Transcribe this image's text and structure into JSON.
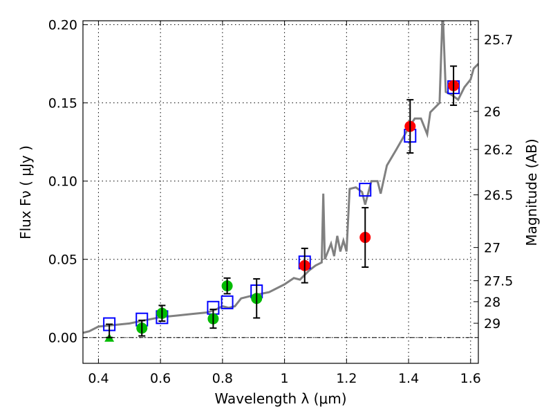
{
  "chart_data": {
    "type": "scatter",
    "xlabel": "Wavelength  λ (μm)",
    "ylabel": "Flux  Fν  ( μJy )",
    "ylabel_right": "Magnitude (AB)",
    "xlim": [
      0.35,
      1.625
    ],
    "ylim": [
      -0.0165,
      0.2025
    ],
    "grid": true,
    "x_ticks": [
      0.4,
      0.6,
      0.8,
      1.0,
      1.2,
      1.4,
      1.6
    ],
    "x_tick_labels": [
      "0.4",
      "0.6",
      "0.8",
      "1",
      "1.2",
      "1.4",
      "1.6"
    ],
    "y_ticks": [
      0.0,
      0.05,
      0.1,
      0.15,
      0.2
    ],
    "y_tick_labels": [
      "0.00",
      "0.05",
      "0.10",
      "0.15",
      "0.20"
    ],
    "right_ticks": [
      {
        "label": "25.7",
        "mag": 25.7
      },
      {
        "label": "26",
        "mag": 26.0
      },
      {
        "label": "26.2",
        "mag": 26.2
      },
      {
        "label": "26.5",
        "mag": 26.5
      },
      {
        "label": "27",
        "mag": 27.0
      },
      {
        "label": "27.5",
        "mag": 27.5
      },
      {
        "label": "28",
        "mag": 28.0
      },
      {
        "label": "29",
        "mag": 29.0
      }
    ],
    "series": [
      {
        "name": "model spectrum",
        "kind": "line",
        "color": "#808080",
        "x": [
          0.35,
          0.37,
          0.4,
          0.45,
          0.5,
          0.55,
          0.6,
          0.65,
          0.7,
          0.75,
          0.78,
          0.8,
          0.82,
          0.84,
          0.86,
          0.9,
          0.95,
          1.0,
          1.03,
          1.05,
          1.08,
          1.1,
          1.12,
          1.125,
          1.13,
          1.15,
          1.16,
          1.17,
          1.18,
          1.19,
          1.2,
          1.21,
          1.23,
          1.25,
          1.26,
          1.28,
          1.3,
          1.31,
          1.33,
          1.36,
          1.38,
          1.4,
          1.42,
          1.44,
          1.45,
          1.46,
          1.47,
          1.5,
          1.51,
          1.52,
          1.54,
          1.56,
          1.58,
          1.6,
          1.61,
          1.625
        ],
        "y": [
          0.003,
          0.004,
          0.007,
          0.008,
          0.009,
          0.011,
          0.013,
          0.014,
          0.015,
          0.016,
          0.018,
          0.02,
          0.019,
          0.02,
          0.025,
          0.027,
          0.029,
          0.034,
          0.038,
          0.037,
          0.043,
          0.046,
          0.048,
          0.092,
          0.05,
          0.06,
          0.052,
          0.065,
          0.055,
          0.062,
          0.055,
          0.095,
          0.096,
          0.093,
          0.085,
          0.1,
          0.1,
          0.092,
          0.11,
          0.12,
          0.127,
          0.134,
          0.14,
          0.14,
          0.135,
          0.13,
          0.144,
          0.15,
          0.21,
          0.157,
          0.155,
          0.152,
          0.16,
          0.165,
          0.172,
          0.175
        ]
      },
      {
        "name": "model band fluxes",
        "kind": "square",
        "color": "#0000ff",
        "x": [
          0.435,
          0.54,
          0.605,
          0.77,
          0.815,
          0.91,
          1.065,
          1.26,
          1.405,
          1.545
        ],
        "y": [
          0.0085,
          0.0115,
          0.013,
          0.019,
          0.0225,
          0.0295,
          0.048,
          0.0945,
          0.129,
          0.16
        ]
      },
      {
        "name": "optical photometry",
        "kind": "circle",
        "color": "#00bb00",
        "x": [
          0.54,
          0.605,
          0.77,
          0.815,
          0.91
        ],
        "y": [
          0.006,
          0.0155,
          0.012,
          0.033,
          0.025
        ],
        "yerr": [
          0.005,
          0.005,
          0.006,
          0.005,
          0.0125
        ]
      },
      {
        "name": "optical upper limit",
        "kind": "triangle",
        "color": "#00bb00",
        "x": [
          0.435
        ],
        "y": [
          0.0
        ],
        "yerr_up": [
          0.0085
        ]
      },
      {
        "name": "NIR photometry",
        "kind": "circle",
        "color": "#ff0000",
        "x": [
          1.065,
          1.26,
          1.405,
          1.545
        ],
        "y": [
          0.046,
          0.064,
          0.135,
          0.161
        ],
        "yerr": [
          0.011,
          0.019,
          0.017,
          0.0125
        ]
      }
    ]
  }
}
